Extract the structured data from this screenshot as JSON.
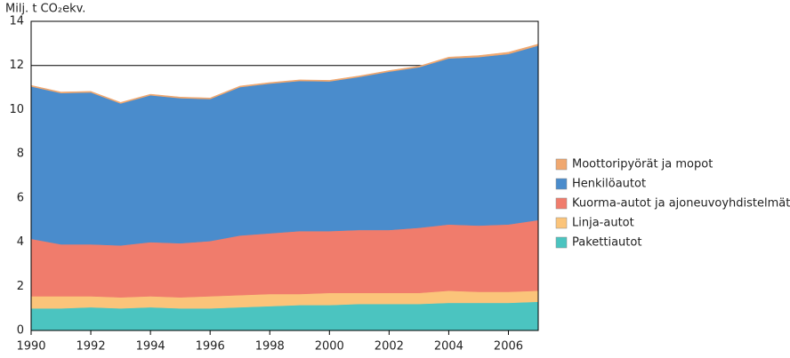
{
  "chart_data": {
    "type": "stacked-area",
    "y_label": "Milj. t CO₂ekv.",
    "x": [
      1990,
      1991,
      1992,
      1993,
      1994,
      1995,
      1996,
      1997,
      1998,
      1999,
      2000,
      2001,
      2002,
      2003,
      2004,
      2005,
      2006,
      2007
    ],
    "xlim": [
      1990,
      2007
    ],
    "xticks": [
      1990,
      1992,
      1994,
      1996,
      1998,
      2000,
      2002,
      2004,
      2006
    ],
    "ylim": [
      0,
      14
    ],
    "yticks": [
      0,
      2,
      4,
      6,
      8,
      10,
      12,
      14
    ],
    "grid": true,
    "legend": "right",
    "series": [
      {
        "name": "Pakettiautot",
        "color": "#4bc4c0",
        "values": [
          1.0,
          1.0,
          1.05,
          1.0,
          1.05,
          1.0,
          1.0,
          1.05,
          1.1,
          1.15,
          1.15,
          1.2,
          1.2,
          1.2,
          1.25,
          1.25,
          1.25,
          1.3
        ]
      },
      {
        "name": "Linja-autot",
        "color": "#fbc47a",
        "values": [
          0.55,
          0.55,
          0.5,
          0.5,
          0.5,
          0.5,
          0.55,
          0.55,
          0.55,
          0.5,
          0.55,
          0.5,
          0.5,
          0.5,
          0.55,
          0.5,
          0.5,
          0.5
        ]
      },
      {
        "name": "Kuorma-autot ja ajoneuvoyhdistelmät",
        "color": "#f07c6c",
        "values": [
          2.6,
          2.35,
          2.35,
          2.35,
          2.45,
          2.45,
          2.5,
          2.7,
          2.75,
          2.85,
          2.8,
          2.85,
          2.85,
          2.95,
          3.0,
          3.0,
          3.05,
          3.2
        ]
      },
      {
        "name": "Henkilöautot",
        "color": "#4a8ccc",
        "values": [
          6.9,
          6.85,
          6.88,
          6.43,
          6.65,
          6.57,
          6.43,
          6.72,
          6.78,
          6.8,
          6.78,
          6.93,
          7.17,
          7.27,
          7.52,
          7.63,
          7.72,
          7.9
        ]
      },
      {
        "name": "Moottoripyörät ja mopot",
        "color": "#f0a870",
        "values": [
          0.05,
          0.05,
          0.05,
          0.05,
          0.05,
          0.05,
          0.05,
          0.05,
          0.05,
          0.05,
          0.05,
          0.05,
          0.05,
          0.05,
          0.06,
          0.07,
          0.08,
          0.07
        ]
      }
    ]
  }
}
